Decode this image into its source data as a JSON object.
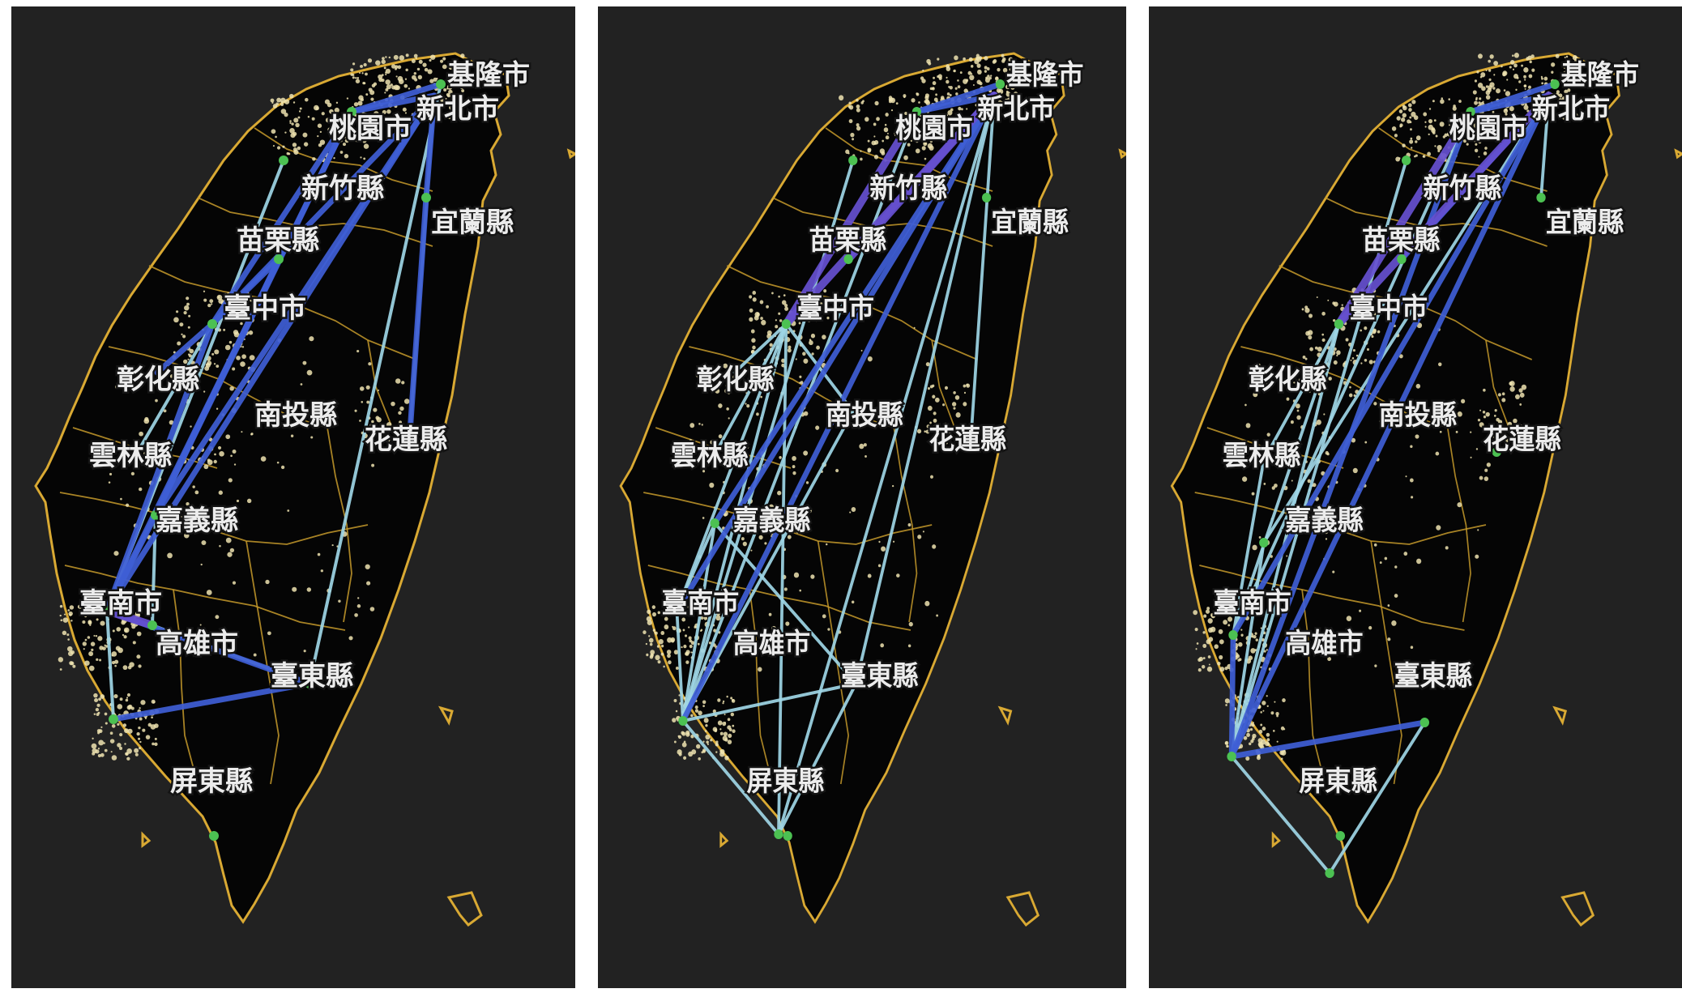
{
  "colors": {
    "background": "#222222",
    "island_fill": "#050505",
    "coast": "#d9a933",
    "county_border": "#c59a2c",
    "light_dot": "#efe3b0",
    "node": "#4cc152",
    "edge_strong": "#3f5fd6",
    "edge_heavy": "#6650d0",
    "edge_light": "#9fd6e6"
  },
  "cities": [
    {
      "id": "keelung",
      "name": "基隆市"
    },
    {
      "id": "newtaipei",
      "name": "新北市"
    },
    {
      "id": "taoyuan",
      "name": "桃園市"
    },
    {
      "id": "hsinchu",
      "name": "新竹縣"
    },
    {
      "id": "yilan",
      "name": "宜蘭縣"
    },
    {
      "id": "miaoli",
      "name": "苗栗縣"
    },
    {
      "id": "taichung",
      "name": "臺中市"
    },
    {
      "id": "changhua",
      "name": "彰化縣"
    },
    {
      "id": "nantou",
      "name": "南投縣"
    },
    {
      "id": "hualien",
      "name": "花蓮縣"
    },
    {
      "id": "yunlin",
      "name": "雲林縣"
    },
    {
      "id": "chiayi",
      "name": "嘉義縣"
    },
    {
      "id": "tainan",
      "name": "臺南市"
    },
    {
      "id": "kaohsiung",
      "name": "高雄市"
    },
    {
      "id": "taitung",
      "name": "臺東縣"
    },
    {
      "id": "pingtung",
      "name": "屏東縣"
    }
  ],
  "panels": [
    {
      "id": "left",
      "edges": [
        [
          "newtaipei",
          "taoyuan",
          "strong"
        ],
        [
          "keelung",
          "taoyuan",
          "strong"
        ],
        [
          "newtaipei",
          "yilan_node",
          "strong"
        ],
        [
          "yilan_node",
          "hualien",
          "strong"
        ],
        [
          "newtaipei",
          "hualien",
          "light"
        ],
        [
          "newtaipei",
          "taichung",
          "strong"
        ],
        [
          "newtaipei",
          "chiayi",
          "strong"
        ],
        [
          "newtaipei",
          "tainan",
          "strong"
        ],
        [
          "taoyuan",
          "taichung",
          "strong"
        ],
        [
          "taoyuan",
          "chiayi",
          "strong"
        ],
        [
          "taoyuan",
          "tainan",
          "strong"
        ],
        [
          "keelung",
          "taitung",
          "light"
        ],
        [
          "taichung",
          "changhua",
          "strong"
        ],
        [
          "taichung",
          "miaoli",
          "strong"
        ],
        [
          "miaoli",
          "chiayi",
          "strong"
        ],
        [
          "taichung",
          "tainan",
          "strong"
        ],
        [
          "chiayi",
          "tainan",
          "strong"
        ],
        [
          "tainan",
          "kaohsiung",
          "heavy"
        ],
        [
          "tainan",
          "taitung",
          "strong"
        ],
        [
          "taitung",
          "pingtung",
          "strong"
        ],
        [
          "tainan",
          "pingtung",
          "light"
        ],
        [
          "chiayi",
          "kaohsiung",
          "light"
        ],
        [
          "taichung",
          "yunlin",
          "light"
        ],
        [
          "hsinchu",
          "tainan",
          "light"
        ],
        [
          "kaohsiung",
          "taitung",
          "light"
        ]
      ]
    },
    {
      "id": "middle",
      "edges": [
        [
          "newtaipei",
          "taoyuan",
          "strong"
        ],
        [
          "keelung",
          "taoyuan",
          "strong"
        ],
        [
          "newtaipei",
          "taichung",
          "heavy"
        ],
        [
          "taoyuan",
          "taichung",
          "heavy"
        ],
        [
          "newtaipei",
          "miaoli",
          "heavy"
        ],
        [
          "newtaipei",
          "hualien",
          "light"
        ],
        [
          "newtaipei",
          "tainan",
          "strong"
        ],
        [
          "newtaipei",
          "kaohsiung",
          "strong"
        ],
        [
          "newtaipei",
          "pingtung",
          "light"
        ],
        [
          "newtaipei",
          "taitung",
          "light"
        ],
        [
          "newtaipei",
          "chiayi",
          "strong"
        ],
        [
          "taoyuan",
          "kaohsiung",
          "light"
        ],
        [
          "hsinchu",
          "kaohsiung",
          "light"
        ],
        [
          "taichung",
          "tainan",
          "light"
        ],
        [
          "taichung",
          "kaohsiung",
          "light"
        ],
        [
          "taichung",
          "pingtung",
          "light"
        ],
        [
          "taichung",
          "nantou",
          "light"
        ],
        [
          "taichung",
          "yunlin",
          "light"
        ],
        [
          "taichung",
          "changhua",
          "light"
        ],
        [
          "chiayi",
          "kaohsiung",
          "light"
        ],
        [
          "tainan",
          "kaohsiung",
          "light"
        ],
        [
          "kaohsiung",
          "taitung",
          "light"
        ],
        [
          "kaohsiung",
          "pingtung",
          "light"
        ],
        [
          "pingtung",
          "taitung",
          "light"
        ],
        [
          "tainan",
          "chiayi",
          "light"
        ],
        [
          "kaohsiung",
          "nantou",
          "light"
        ],
        [
          "taitung",
          "chiayi",
          "light"
        ]
      ]
    },
    {
      "id": "right",
      "edges": [
        [
          "newtaipei",
          "taoyuan",
          "strong"
        ],
        [
          "keelung",
          "taoyuan",
          "strong"
        ],
        [
          "newtaipei",
          "yilan_node",
          "light"
        ],
        [
          "newtaipei",
          "taichung",
          "heavy"
        ],
        [
          "taoyuan",
          "taichung",
          "heavy"
        ],
        [
          "newtaipei",
          "miaoli",
          "strong"
        ],
        [
          "newtaipei",
          "tainan",
          "strong"
        ],
        [
          "newtaipei",
          "kaohsiung",
          "strong"
        ],
        [
          "taoyuan",
          "kaohsiung",
          "strong"
        ],
        [
          "newtaipei",
          "chiayi",
          "light"
        ],
        [
          "taichung",
          "tainan",
          "light"
        ],
        [
          "taichung",
          "kaohsiung",
          "light"
        ],
        [
          "taichung",
          "yunlin",
          "light"
        ],
        [
          "tainan",
          "kaohsiung",
          "strong"
        ],
        [
          "kaohsiung",
          "taitung",
          "strong"
        ],
        [
          "kaohsiung",
          "pingtung",
          "light"
        ],
        [
          "pingtung",
          "taitung",
          "light"
        ],
        [
          "chiayi",
          "kaohsiung",
          "light"
        ],
        [
          "tainan",
          "yunlin",
          "light"
        ],
        [
          "taoyuan",
          "tainan",
          "light"
        ],
        [
          "hsinchu",
          "kaohsiung",
          "light"
        ]
      ]
    }
  ]
}
